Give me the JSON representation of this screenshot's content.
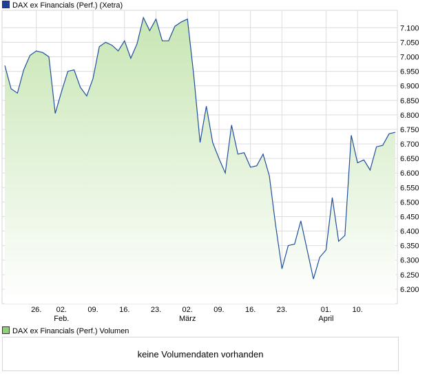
{
  "price_legend": "DAX ex Financials (Perf.) (Xetra)",
  "volume_legend": "DAX ex Financials (Perf.) Volumen",
  "volume_message": "keine Volumendaten vorhanden",
  "colors": {
    "line": "#1f4e9e",
    "fill_top": "#c8e6b4",
    "fill_bottom": "#ffffff",
    "grid": "#dcdcdc"
  },
  "chart_data": {
    "type": "area",
    "title": "DAX ex Financials (Perf.) (Xetra)",
    "xlabel": "",
    "ylabel": "",
    "ylim": [
      6150,
      7160
    ],
    "grid": true,
    "y_ticks": [
      "7.100",
      "7.050",
      "7.000",
      "6.950",
      "6.900",
      "6.850",
      "6.800",
      "6.750",
      "6.700",
      "6.650",
      "6.600",
      "6.550",
      "6.500",
      "6.450",
      "6.400",
      "6.350",
      "6.300",
      "6.250",
      "6.200"
    ],
    "y_tick_values": [
      7100,
      7050,
      7000,
      6950,
      6900,
      6850,
      6800,
      6750,
      6700,
      6650,
      6600,
      6550,
      6500,
      6450,
      6400,
      6350,
      6300,
      6250,
      6200
    ],
    "x_ticks": [
      {
        "label": "26.",
        "sub": "",
        "index": 5
      },
      {
        "label": "02.",
        "sub": "Feb.",
        "index": 9
      },
      {
        "label": "09.",
        "sub": "",
        "index": 14
      },
      {
        "label": "16.",
        "sub": "",
        "index": 19
      },
      {
        "label": "23.",
        "sub": "",
        "index": 24
      },
      {
        "label": "02.",
        "sub": "März",
        "index": 29
      },
      {
        "label": "09.",
        "sub": "",
        "index": 34
      },
      {
        "label": "16.",
        "sub": "",
        "index": 39
      },
      {
        "label": "23.",
        "sub": "",
        "index": 44
      },
      {
        "label": "01.",
        "sub": "April",
        "index": 51
      },
      {
        "label": "10.",
        "sub": "",
        "index": 56
      }
    ],
    "series": [
      {
        "values": [
          6970,
          6890,
          6875,
          6955,
          7005,
          7020,
          7015,
          7000,
          6805,
          6880,
          6950,
          6955,
          6895,
          6865,
          6925,
          7035,
          7050,
          7040,
          7020,
          7055,
          6995,
          7045,
          7135,
          7090,
          7130,
          7055,
          7055,
          7105,
          7120,
          7130,
          6935,
          6705,
          6830,
          6705,
          6650,
          6600,
          6765,
          6665,
          6670,
          6620,
          6625,
          6665,
          6590,
          6420,
          6270,
          6350,
          6355,
          6435,
          6335,
          6235,
          6310,
          6335,
          6515,
          6365,
          6385,
          6730,
          6635,
          6645,
          6610,
          6690,
          6695,
          6735,
          6740
        ]
      }
    ]
  }
}
